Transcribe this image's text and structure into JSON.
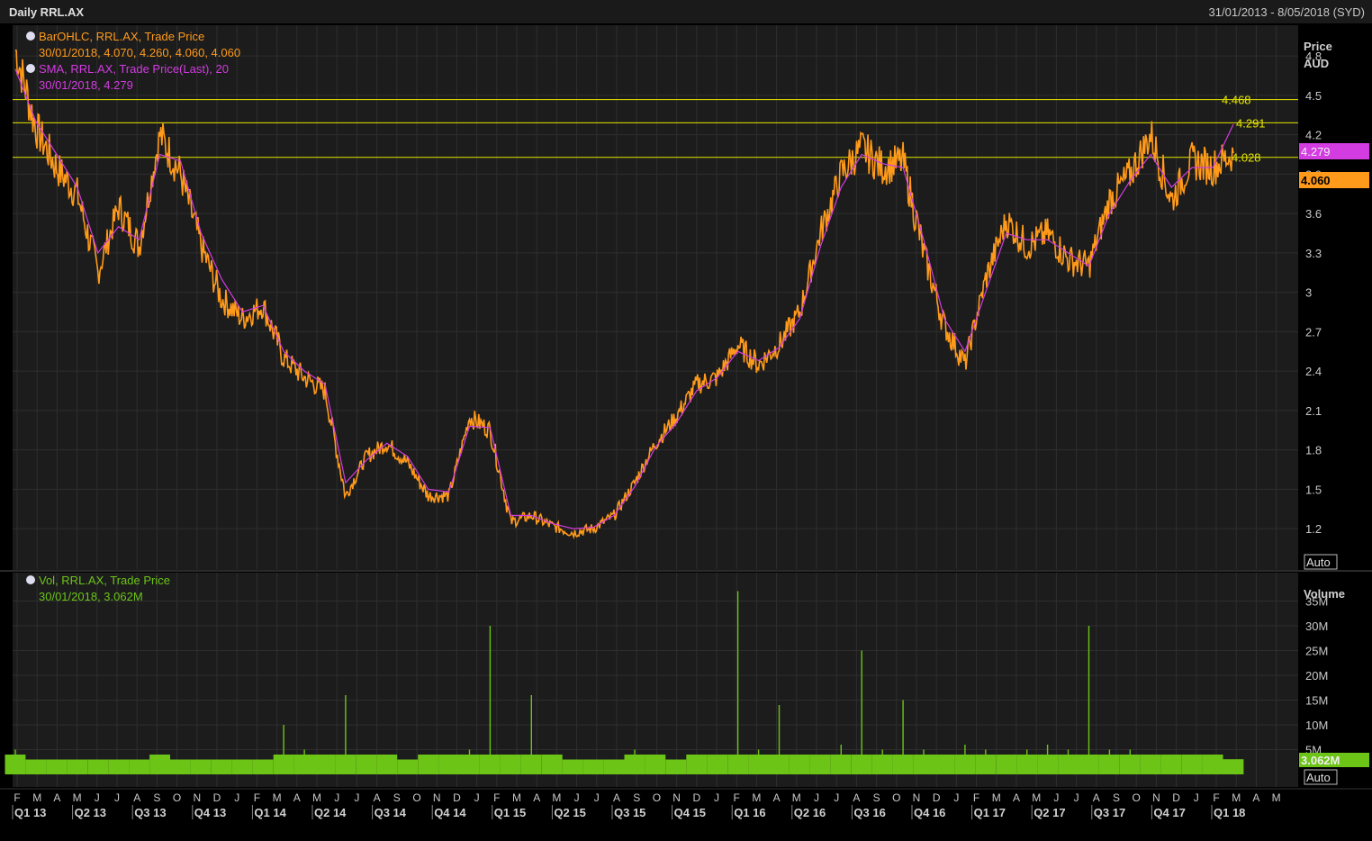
{
  "header": {
    "title": "Daily RRL.AX",
    "date_range": "31/01/2013 - 8/05/2018 (SYD)"
  },
  "legend": {
    "ohlc_name": "BarOHLC, RRL.AX, Trade Price",
    "ohlc_values": "30/01/2018, 4.070, 4.260, 4.060, 4.060",
    "sma_name": "SMA, RRL.AX, Trade Price(Last),  20",
    "sma_values": "30/01/2018, 4.279",
    "vol_name": "Vol, RRL.AX, Trade Price",
    "vol_values": "30/01/2018, 3.062M"
  },
  "price_axis": {
    "title1": "Price",
    "title2": "AUD",
    "ticks": [
      "4.8",
      "4.5",
      "4.2",
      "3.9",
      "3.6",
      "3.3",
      "3",
      "2.7",
      "2.4",
      "2.1",
      "1.8",
      "1.5",
      "1.2"
    ],
    "tick_values": [
      4.8,
      4.5,
      4.2,
      3.9,
      3.6,
      3.3,
      3.0,
      2.7,
      2.4,
      2.1,
      1.8,
      1.5,
      1.2
    ],
    "auto_label": "Auto",
    "sma_badge": "4.279",
    "close_badge": "4.060"
  },
  "volume_axis": {
    "title": "Volume",
    "ticks": [
      "35M",
      "30M",
      "25M",
      "20M",
      "15M",
      "10M",
      "5M"
    ],
    "tick_values": [
      35,
      30,
      25,
      20,
      15,
      10,
      5
    ],
    "auto_label": "Auto",
    "last_badge": "3.062M"
  },
  "colors": {
    "background": "#000000",
    "panel": "#1c1c1c",
    "grid": "#2e2e2e",
    "price": "#ff9a1a",
    "sma": "#d23ce0",
    "volume": "#6cc417",
    "hline": "#e6e600",
    "axis_text": "#c8c8c8"
  },
  "x_axis": {
    "months": [
      "F",
      "M",
      "A",
      "M",
      "J",
      "J",
      "A",
      "S",
      "O",
      "N",
      "D",
      "J",
      "F",
      "M",
      "A",
      "M",
      "J",
      "J",
      "A",
      "S",
      "O",
      "N",
      "D",
      "J",
      "F",
      "M",
      "A",
      "M",
      "J",
      "J",
      "A",
      "S",
      "O",
      "N",
      "D",
      "J",
      "F",
      "M",
      "A",
      "M",
      "J",
      "J",
      "A",
      "S",
      "O",
      "N",
      "D",
      "J",
      "F",
      "M",
      "A",
      "M",
      "J",
      "J",
      "A",
      "S",
      "O",
      "N",
      "D",
      "J",
      "F",
      "M",
      "A",
      "M"
    ],
    "quarters": [
      "Q1 13",
      "Q2 13",
      "Q3 13",
      "Q4 13",
      "Q1 14",
      "Q2 14",
      "Q3 14",
      "Q4 14",
      "Q1 15",
      "Q2 15",
      "Q3 15",
      "Q4 15",
      "Q1 16",
      "Q2 16",
      "Q3 16",
      "Q4 16",
      "Q1 17",
      "Q2 17",
      "Q3 17",
      "Q4 17",
      "Q1 18"
    ]
  },
  "chart_data": {
    "type": "line",
    "title": "Daily RRL.AX",
    "date_range": "31/01/2013 - 8/05/2018",
    "currency": "AUD",
    "horizontal_lines": [
      4.468,
      4.291,
      4.028
    ],
    "price_ylim": [
      1.05,
      5.0
    ],
    "volume_ylim_millions": [
      0,
      40
    ],
    "series": [
      {
        "name": "BarOHLC, RRL.AX, Trade Price",
        "kind": "price",
        "x": [
          "2013-02",
          "2013-03",
          "2013-04",
          "2013-05",
          "2013-06",
          "2013-07",
          "2013-08",
          "2013-09",
          "2013-10",
          "2013-11",
          "2013-12",
          "2014-01",
          "2014-02",
          "2014-03",
          "2014-04",
          "2014-05",
          "2014-06",
          "2014-07",
          "2014-08",
          "2014-09",
          "2014-10",
          "2014-11",
          "2014-12",
          "2015-01",
          "2015-02",
          "2015-03",
          "2015-04",
          "2015-05",
          "2015-06",
          "2015-07",
          "2015-08",
          "2015-09",
          "2015-10",
          "2015-11",
          "2015-12",
          "2016-01",
          "2016-02",
          "2016-03",
          "2016-04",
          "2016-05",
          "2016-06",
          "2016-07",
          "2016-08",
          "2016-09",
          "2016-10",
          "2016-11",
          "2016-12",
          "2017-01",
          "2017-02",
          "2017-03",
          "2017-04",
          "2017-05",
          "2017-06",
          "2017-07",
          "2017-08",
          "2017-09",
          "2017-10",
          "2017-11",
          "2017-12",
          "2018-01"
        ],
        "values": [
          4.85,
          4.25,
          3.95,
          3.75,
          3.15,
          3.65,
          3.35,
          4.2,
          3.9,
          3.35,
          2.95,
          2.8,
          2.9,
          2.5,
          2.35,
          2.25,
          1.45,
          1.75,
          1.85,
          1.7,
          1.45,
          1.45,
          2.05,
          1.95,
          1.25,
          1.3,
          1.22,
          1.17,
          1.2,
          1.3,
          1.55,
          1.85,
          2.05,
          2.3,
          2.35,
          2.6,
          2.45,
          2.6,
          2.85,
          3.45,
          3.9,
          4.1,
          3.95,
          4.0,
          3.3,
          2.75,
          2.45,
          3.1,
          3.55,
          3.35,
          3.45,
          3.25,
          3.2,
          3.7,
          3.9,
          4.2,
          3.7,
          4.0,
          3.95,
          4.06
        ]
      },
      {
        "name": "SMA, RRL.AX, Trade Price(Last),  20",
        "kind": "sma",
        "x": [
          "2013-02",
          "2013-03",
          "2013-04",
          "2013-05",
          "2013-06",
          "2013-07",
          "2013-08",
          "2013-09",
          "2013-10",
          "2013-11",
          "2013-12",
          "2014-01",
          "2014-02",
          "2014-03",
          "2014-04",
          "2014-05",
          "2014-06",
          "2014-07",
          "2014-08",
          "2014-09",
          "2014-10",
          "2014-11",
          "2014-12",
          "2015-01",
          "2015-02",
          "2015-03",
          "2015-04",
          "2015-05",
          "2015-06",
          "2015-07",
          "2015-08",
          "2015-09",
          "2015-10",
          "2015-11",
          "2015-12",
          "2016-01",
          "2016-02",
          "2016-03",
          "2016-04",
          "2016-05",
          "2016-06",
          "2016-07",
          "2016-08",
          "2016-09",
          "2016-10",
          "2016-11",
          "2016-12",
          "2017-01",
          "2017-02",
          "2017-03",
          "2017-04",
          "2017-05",
          "2017-06",
          "2017-07",
          "2017-08",
          "2017-09",
          "2017-10",
          "2017-11",
          "2017-12",
          "2018-01"
        ],
        "values": [
          4.7,
          4.3,
          4.05,
          3.8,
          3.3,
          3.5,
          3.4,
          4.05,
          4.0,
          3.45,
          3.1,
          2.85,
          2.9,
          2.55,
          2.4,
          2.3,
          1.55,
          1.72,
          1.85,
          1.75,
          1.5,
          1.48,
          1.98,
          1.97,
          1.3,
          1.3,
          1.24,
          1.2,
          1.21,
          1.3,
          1.52,
          1.82,
          2.0,
          2.25,
          2.35,
          2.55,
          2.48,
          2.58,
          2.8,
          3.35,
          3.8,
          4.05,
          3.98,
          3.95,
          3.4,
          2.8,
          2.55,
          3.0,
          3.45,
          3.4,
          3.4,
          3.3,
          3.2,
          3.6,
          3.85,
          4.05,
          3.8,
          3.95,
          3.95,
          4.279
        ]
      },
      {
        "name": "Vol, RRL.AX, Trade Price",
        "kind": "volume",
        "unit": "M",
        "x": [
          "2013-02",
          "2013-03",
          "2013-04",
          "2013-05",
          "2013-06",
          "2013-07",
          "2013-08",
          "2013-09",
          "2013-10",
          "2013-11",
          "2013-12",
          "2014-01",
          "2014-02",
          "2014-03",
          "2014-04",
          "2014-05",
          "2014-06",
          "2014-07",
          "2014-08",
          "2014-09",
          "2014-10",
          "2014-11",
          "2014-12",
          "2015-01",
          "2015-02",
          "2015-03",
          "2015-04",
          "2015-05",
          "2015-06",
          "2015-07",
          "2015-08",
          "2015-09",
          "2015-10",
          "2015-11",
          "2015-12",
          "2016-01",
          "2016-02",
          "2016-03",
          "2016-04",
          "2016-05",
          "2016-06",
          "2016-07",
          "2016-08",
          "2016-09",
          "2016-10",
          "2016-11",
          "2016-12",
          "2017-01",
          "2017-02",
          "2017-03",
          "2017-04",
          "2017-05",
          "2017-06",
          "2017-07",
          "2017-08",
          "2017-09",
          "2017-10",
          "2017-11",
          "2017-12",
          "2018-01"
        ],
        "values": [
          5,
          3,
          3,
          3,
          3,
          3,
          3,
          4,
          3,
          3,
          3,
          3,
          3,
          10,
          5,
          4,
          16,
          4,
          4,
          3,
          4,
          4,
          5,
          30,
          4,
          16,
          4,
          3,
          3,
          3,
          5,
          4,
          3,
          4,
          4,
          37,
          5,
          14,
          4,
          4,
          6,
          25,
          5,
          15,
          5,
          4,
          6,
          5,
          4,
          5,
          6,
          5,
          30,
          5,
          5,
          4,
          4,
          4,
          4,
          3.062
        ]
      }
    ]
  }
}
